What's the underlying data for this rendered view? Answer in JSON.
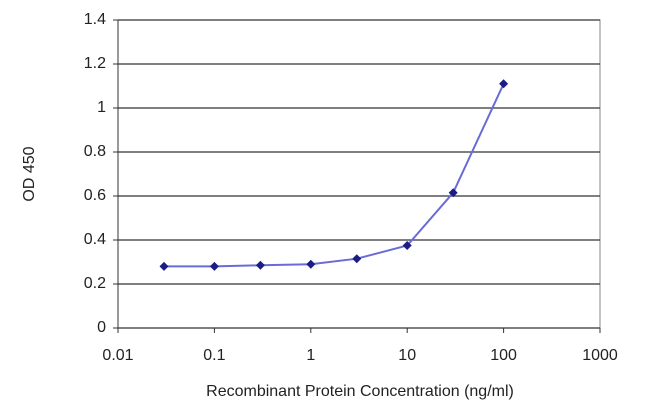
{
  "chart_data": {
    "type": "line",
    "x_label": "Recombinant Protein Concentration (ng/ml)",
    "y_label": "OD 450",
    "x": [
      0.03,
      0.1,
      0.3,
      1,
      3,
      10,
      30,
      100
    ],
    "series": [
      {
        "color": "#6b6bd6",
        "marker_color": "#1c1c85",
        "values": [
          0.28,
          0.28,
          0.285,
          0.29,
          0.315,
          0.375,
          0.615,
          1.11
        ]
      }
    ],
    "xscale": "log",
    "xlim": [
      0.01,
      1000
    ],
    "xticks": [
      0.01,
      0.1,
      1,
      10,
      100,
      1000
    ],
    "ylim": [
      0,
      1.4
    ],
    "yticks": [
      0,
      0.2,
      0.4,
      0.6,
      0.8,
      1,
      1.2,
      1.4
    ],
    "grid": true
  }
}
